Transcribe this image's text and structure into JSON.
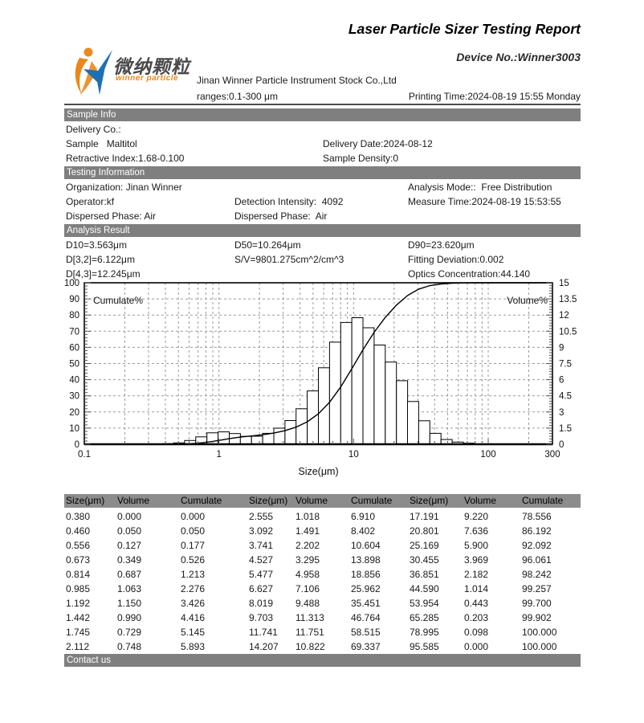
{
  "header": {
    "title": "Laser Particle Sizer Testing Report",
    "device_no": "Device No.:Winner3003",
    "company": "Jinan Winner Particle Instrument Stock Co.,Ltd",
    "ranges": "ranges:0.1-300 μm",
    "printing_time": "Printing Time:2024-08-19 15:55 Monday",
    "logo": {
      "cn": "微纳颗粒",
      "en": "winner particle"
    }
  },
  "colors": {
    "section_bar": "#7f7f7f",
    "table_header_bar": "#8c8c8c",
    "logo_orange": "#e8891c",
    "logo_blue": "#1f6fb5"
  },
  "sample_info": {
    "section_title": "Sample Info",
    "delivery_co": "Delivery Co.:",
    "sample": "Sample   Maltitol",
    "delivery_date": "Delivery Date:2024-08-12",
    "retractive_index": "Retractive Index:1.68-0.100",
    "sample_density": "Sample Density:0"
  },
  "testing_information": {
    "section_title": "Testing Information",
    "organization": "Organization: Jinan Winner",
    "analysis_mode": "Analysis Mode::  Free Distribution",
    "operator": "Operator:kf",
    "detection_intensity": "Detection Intensity:  4092",
    "measure_time": "Measure Time:2024-08-19 15:53:55",
    "dispersed_phase_1": "Dispersed Phase: Air",
    "dispersed_phase_2": "Dispersed Phase:  Air"
  },
  "analysis_result": {
    "section_title": "Analysis Result",
    "d10": "D10=3.563μm",
    "d50": "D50=10.264μm",
    "d90": "D90=23.620μm",
    "d32": "D[3,2]=6.122μm",
    "sv": "S/V=9801.275cm^2/cm^3",
    "fitting_deviation": "Fitting Deviation:0.002",
    "d43": "D[4,3]=12.245μm",
    "optics_concentration": "Optics Concentration:44.140"
  },
  "chart_data": {
    "type": "histogram+cumulative-line",
    "x_axis": {
      "label": "Size(μm)",
      "scale": "log",
      "min": 0.1,
      "max": 300,
      "tick_values": [
        0.1,
        1,
        10,
        100,
        300
      ],
      "tick_labels": [
        "0.1",
        "1",
        "10",
        "100",
        "300"
      ]
    },
    "left_axis": {
      "label": "Cumulate%",
      "min": 0,
      "max": 100,
      "tick_step": 10,
      "tick_labels": [
        "0",
        "10",
        "20",
        "30",
        "40",
        "50",
        "60",
        "70",
        "80",
        "90",
        "100"
      ]
    },
    "right_axis": {
      "label": "Volume%",
      "min": 0,
      "max": 15,
      "tick_values": [
        0,
        1.5,
        3,
        4.5,
        6,
        7.5,
        9,
        10.5,
        12,
        13.5,
        15
      ],
      "tick_labels": [
        "0",
        "1.5",
        "3",
        "4.5",
        "6",
        "7.5",
        "9",
        "10.5",
        "12",
        "13.5",
        "15"
      ]
    },
    "grid": true,
    "sizes_um": [
      0.38,
      0.46,
      0.556,
      0.673,
      0.814,
      0.985,
      1.192,
      1.442,
      1.745,
      2.112,
      2.555,
      3.092,
      3.741,
      4.527,
      5.477,
      6.627,
      8.019,
      9.703,
      11.741,
      14.207,
      17.191,
      20.801,
      25.169,
      30.455,
      36.851,
      44.59,
      53.954,
      65.285,
      78.995,
      95.585
    ],
    "volume_percent": [
      0.0,
      0.05,
      0.127,
      0.349,
      0.687,
      1.063,
      1.15,
      0.99,
      0.729,
      0.748,
      1.018,
      1.491,
      2.202,
      3.295,
      4.958,
      7.106,
      9.488,
      11.313,
      11.751,
      10.822,
      9.22,
      7.636,
      5.9,
      3.969,
      2.182,
      1.014,
      0.443,
      0.203,
      0.098,
      0.0
    ],
    "cumulate_percent": [
      0.0,
      0.05,
      0.177,
      0.526,
      1.213,
      2.276,
      3.426,
      4.416,
      5.145,
      5.893,
      6.91,
      8.402,
      10.604,
      13.898,
      18.856,
      25.962,
      35.451,
      46.764,
      58.515,
      69.337,
      78.556,
      86.192,
      92.092,
      96.061,
      98.242,
      99.257,
      99.7,
      99.902,
      100.0,
      100.0
    ]
  },
  "table": {
    "headers": [
      "Size(μm)",
      "Volume",
      "Cumulate",
      "Size(μm)",
      "Volume",
      "Cumulate",
      "Size(μm)",
      "Volume",
      "Cumulate"
    ],
    "rows": [
      [
        "0.380",
        "0.000",
        "0.000",
        "2.555",
        "1.018",
        "6.910",
        "17.191",
        "9.220",
        "78.556"
      ],
      [
        "0.460",
        "0.050",
        "0.050",
        "3.092",
        "1.491",
        "8.402",
        "20.801",
        "7.636",
        "86.192"
      ],
      [
        "0.556",
        "0.127",
        "0.177",
        "3.741",
        "2.202",
        "10.604",
        "25.169",
        "5.900",
        "92.092"
      ],
      [
        "0.673",
        "0.349",
        "0.526",
        "4.527",
        "3.295",
        "13.898",
        "30.455",
        "3.969",
        "96.061"
      ],
      [
        "0.814",
        "0.687",
        "1.213",
        "5.477",
        "4.958",
        "18.856",
        "36.851",
        "2.182",
        "98.242"
      ],
      [
        "0.985",
        "1.063",
        "2.276",
        "6.627",
        "7.106",
        "25.962",
        "44.590",
        "1.014",
        "99.257"
      ],
      [
        "1.192",
        "1.150",
        "3.426",
        "8.019",
        "9.488",
        "35.451",
        "53.954",
        "0.443",
        "99.700"
      ],
      [
        "1.442",
        "0.990",
        "4.416",
        "9.703",
        "11.313",
        "46.764",
        "65.285",
        "0.203",
        "99.902"
      ],
      [
        "1.745",
        "0.729",
        "5.145",
        "11.741",
        "11.751",
        "58.515",
        "78.995",
        "0.098",
        "100.000"
      ],
      [
        "2.112",
        "0.748",
        "5.893",
        "14.207",
        "10.822",
        "69.337",
        "95.585",
        "0.000",
        "100.000"
      ]
    ]
  },
  "contact": {
    "section_title": "Contact us"
  }
}
